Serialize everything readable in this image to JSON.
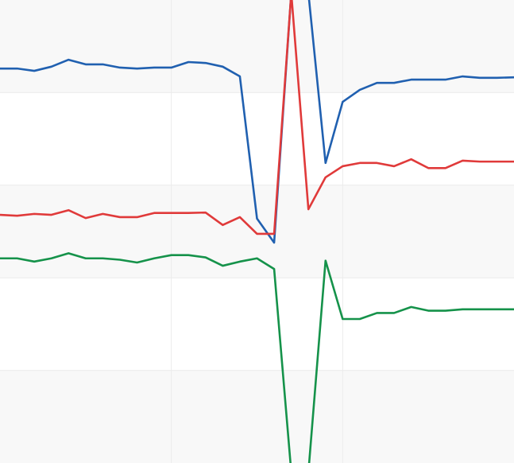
{
  "chart_data": {
    "type": "line",
    "title": "",
    "xlabel": "",
    "ylabel": "",
    "x": [
      0,
      1,
      2,
      3,
      4,
      5,
      6,
      7,
      8,
      9,
      10,
      11,
      12,
      13,
      14,
      15,
      16,
      17,
      18,
      19,
      20,
      21,
      22,
      23,
      24,
      25,
      26,
      27,
      28,
      29,
      30
    ],
    "xlim": [
      0,
      30
    ],
    "ylim": [
      0,
      100
    ],
    "grid": true,
    "band_colors": [
      "#f8f8f8",
      "#ffffff"
    ],
    "grid_color": "#ebebeb",
    "series": [
      {
        "color": "#2060b0",
        "values": [
          85.2,
          85.2,
          84.7,
          85.6,
          87.1,
          86.1,
          86.1,
          85.4,
          85.2,
          85.4,
          85.4,
          86.6,
          86.4,
          85.6,
          83.5,
          52.8,
          47.6,
          101.5,
          101.5,
          64.8,
          78.0,
          80.6,
          82.1,
          82.1,
          82.8,
          82.8,
          82.8,
          83.5,
          83.2,
          83.2,
          83.3
        ]
      },
      {
        "color": "#e03a3a",
        "values": [
          53.6,
          53.4,
          53.8,
          53.6,
          54.6,
          52.9,
          53.8,
          53.1,
          53.1,
          54.0,
          54.0,
          54.0,
          54.1,
          51.4,
          53.1,
          49.5,
          49.5,
          101.5,
          54.8,
          61.7,
          64.1,
          64.8,
          64.8,
          64.1,
          65.6,
          63.7,
          63.7,
          65.3,
          65.1,
          65.1,
          65.1
        ]
      },
      {
        "color": "#15924a",
        "values": [
          44.2,
          44.2,
          43.5,
          44.2,
          45.3,
          44.2,
          44.2,
          43.9,
          43.3,
          44.2,
          44.9,
          44.9,
          44.4,
          42.6,
          43.5,
          44.2,
          41.9,
          -2.0,
          -2.0,
          43.7,
          31.1,
          31.1,
          32.4,
          32.4,
          33.7,
          32.9,
          32.9,
          33.2,
          33.2,
          33.2,
          33.2
        ]
      }
    ]
  }
}
